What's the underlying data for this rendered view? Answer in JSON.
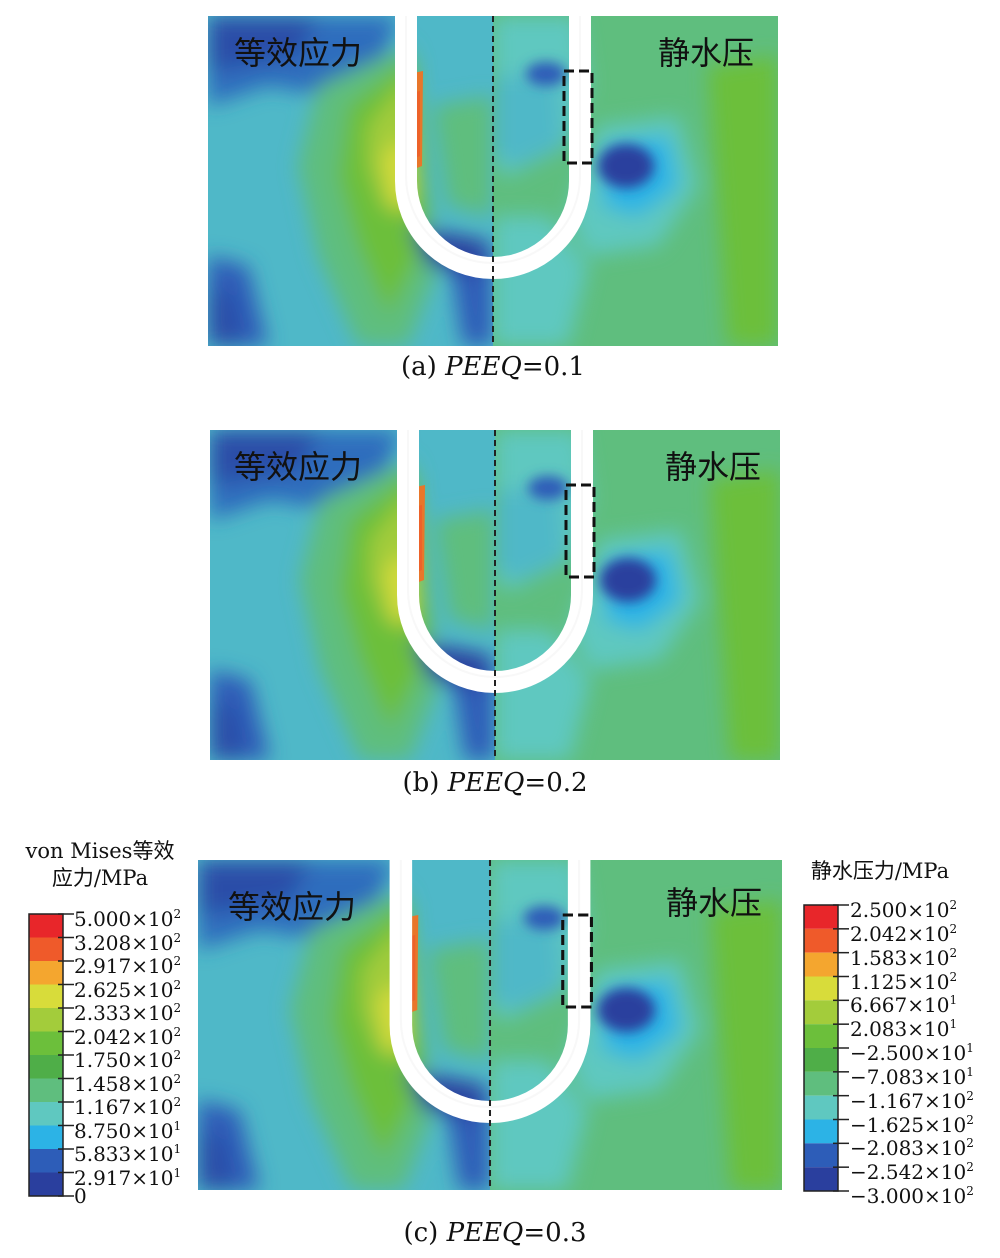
{
  "panels": [
    {
      "id": "a",
      "left_label": "等效应力",
      "right_label": "静水压",
      "caption_prefix": "(a)",
      "caption_var": "PEEQ",
      "caption_eq": "=0.1"
    },
    {
      "id": "b",
      "left_label": "等效应力",
      "right_label": "静水压",
      "caption_prefix": "(b)",
      "caption_var": "PEEQ",
      "caption_eq": "=0.2"
    },
    {
      "id": "c",
      "left_label": "等效应力",
      "right_label": "静水压",
      "caption_prefix": "(c)",
      "caption_var": "PEEQ",
      "caption_eq": "=0.3"
    }
  ],
  "legend_left": {
    "title_line1": "von Mises等效",
    "title_line2": "应力/MPa",
    "colors": [
      "#e8262a",
      "#ef5a2a",
      "#f4a62f",
      "#d8dc3a",
      "#a3cc3b",
      "#6cbf3b",
      "#4fae48",
      "#5fbe7e",
      "#5fc8c0",
      "#2cb3e6",
      "#2d5db8",
      "#2a3f9e"
    ],
    "ticks": [
      {
        "m": "5.000",
        "e": "2"
      },
      {
        "m": "3.208",
        "e": "2"
      },
      {
        "m": "2.917",
        "e": "2"
      },
      {
        "m": "2.625",
        "e": "2"
      },
      {
        "m": "2.333",
        "e": "2"
      },
      {
        "m": "2.042",
        "e": "2"
      },
      {
        "m": "1.750",
        "e": "2"
      },
      {
        "m": "1.458",
        "e": "2"
      },
      {
        "m": "1.167",
        "e": "2"
      },
      {
        "m": "8.750",
        "e": "1"
      },
      {
        "m": "5.833",
        "e": "1"
      },
      {
        "m": "2.917",
        "e": "1"
      },
      {
        "m": "0",
        "e": ""
      }
    ]
  },
  "legend_right": {
    "title": "静水压力/MPa",
    "colors": [
      "#e8262a",
      "#ef5a2a",
      "#f4a62f",
      "#d8dc3a",
      "#a3cc3b",
      "#6cbf3b",
      "#4fae48",
      "#5fbe7e",
      "#5fc8c0",
      "#2cb3e6",
      "#2d5db8",
      "#2a3f9e"
    ],
    "ticks": [
      {
        "m": "2.500",
        "e": "2"
      },
      {
        "m": "2.042",
        "e": "2"
      },
      {
        "m": "1.583",
        "e": "2"
      },
      {
        "m": "1.125",
        "e": "2"
      },
      {
        "m": "6.667",
        "e": "1"
      },
      {
        "m": "2.083",
        "e": "1"
      },
      {
        "m": "−2.500",
        "e": "1"
      },
      {
        "m": "−7.083",
        "e": "1"
      },
      {
        "m": "−1.167",
        "e": "2"
      },
      {
        "m": "−1.625",
        "e": "2"
      },
      {
        "m": "−2.083",
        "e": "2"
      },
      {
        "m": "−2.542",
        "e": "2"
      },
      {
        "m": "−3.000",
        "e": "2"
      }
    ]
  }
}
